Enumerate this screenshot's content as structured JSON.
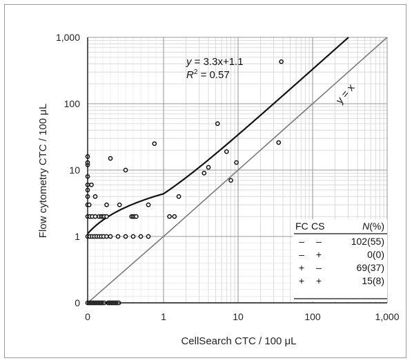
{
  "chart_data": {
    "type": "scatter",
    "xlabel": "CellSearch CTC / 100 μL",
    "ylabel": "Flow cytometry CTC / 100 μL",
    "xscale": "log with zero",
    "yscale": "log with zero",
    "xlim": [
      0,
      1000
    ],
    "ylim": [
      0,
      1000
    ],
    "x_tick_labels": [
      "0",
      "1",
      "10",
      "100",
      "1,000"
    ],
    "y_tick_labels": [
      "0",
      "1",
      "10",
      "100",
      "1,000"
    ],
    "grid": true,
    "fit": {
      "label_eq_y": "y",
      "label_eq_rest": " = 3.3x+1.1",
      "label_r2_R": "R",
      "label_r2_sup": "2",
      "label_r2_rest": " = 0.57",
      "slope": 3.3,
      "intercept": 1.1
    },
    "identity_line_label": "y = x",
    "points": [
      [
        0,
        0
      ],
      [
        0.02,
        0
      ],
      [
        0.04,
        0
      ],
      [
        0.06,
        0
      ],
      [
        0.08,
        0
      ],
      [
        0.1,
        0
      ],
      [
        0.12,
        0
      ],
      [
        0.14,
        0
      ],
      [
        0.16,
        0
      ],
      [
        0.18,
        0
      ],
      [
        0.2,
        0
      ],
      [
        0.22,
        0
      ],
      [
        0.27,
        0
      ],
      [
        0.29,
        0
      ],
      [
        0.31,
        0
      ],
      [
        0.33,
        0
      ],
      [
        0.35,
        0
      ],
      [
        0.37,
        0
      ],
      [
        0.39,
        0
      ],
      [
        0.41,
        0
      ],
      [
        0,
        1
      ],
      [
        0.03,
        1
      ],
      [
        0.06,
        1
      ],
      [
        0.09,
        1
      ],
      [
        0.12,
        1
      ],
      [
        0.15,
        1
      ],
      [
        0.18,
        1
      ],
      [
        0.21,
        1
      ],
      [
        0.25,
        1
      ],
      [
        0.3,
        1
      ],
      [
        0.4,
        1
      ],
      [
        0.5,
        1
      ],
      [
        0.6,
        1
      ],
      [
        0.7,
        1
      ],
      [
        0.8,
        1
      ],
      [
        0,
        2
      ],
      [
        0.03,
        2
      ],
      [
        0.06,
        2
      ],
      [
        0.1,
        2
      ],
      [
        0.15,
        2
      ],
      [
        0.18,
        2
      ],
      [
        0.2,
        2
      ],
      [
        0.22,
        2
      ],
      [
        0.25,
        2
      ],
      [
        0.58,
        2
      ],
      [
        0.6,
        2
      ],
      [
        0.62,
        2
      ],
      [
        0.64,
        2
      ],
      [
        1.2,
        2
      ],
      [
        1.4,
        2
      ],
      [
        0,
        3
      ],
      [
        0.02,
        3
      ],
      [
        0.25,
        3
      ],
      [
        0.42,
        3
      ],
      [
        0.8,
        3
      ],
      [
        0,
        4
      ],
      [
        0.1,
        4
      ],
      [
        1.6,
        4
      ],
      [
        0,
        5
      ],
      [
        0,
        6
      ],
      [
        0.05,
        6
      ],
      [
        0,
        8
      ],
      [
        0,
        12
      ],
      [
        0,
        13
      ],
      [
        0,
        16
      ],
      [
        0.3,
        15
      ],
      [
        0.5,
        10
      ],
      [
        0.88,
        25
      ],
      [
        3.5,
        9
      ],
      [
        4,
        11
      ],
      [
        5.3,
        50
      ],
      [
        7,
        19
      ],
      [
        8,
        7
      ],
      [
        9.5,
        13
      ],
      [
        35,
        26
      ],
      [
        38,
        430
      ]
    ],
    "contingency_table": {
      "headers": [
        "FC",
        "CS",
        "N",
        "(%)"
      ],
      "rows": [
        [
          "–",
          "–",
          "102(55)"
        ],
        [
          "–",
          "+",
          "0(0)"
        ],
        [
          "+",
          "–",
          "69(37)"
        ],
        [
          "+",
          "+",
          "15(8)"
        ]
      ]
    }
  }
}
